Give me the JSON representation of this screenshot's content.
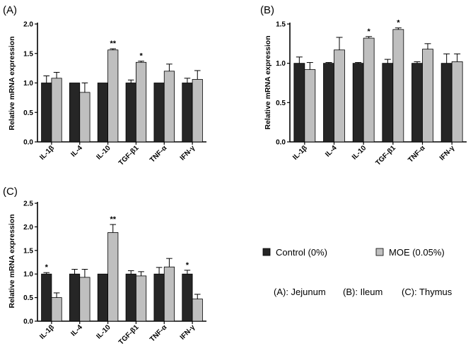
{
  "chart_data": [
    {
      "panel": "(A)",
      "type": "bar",
      "ylabel": "Relative mRNA expression",
      "ylim": [
        0,
        2.0
      ],
      "yticks": [
        "0.0",
        "0.5",
        "1.0",
        "1.5",
        "2.0"
      ],
      "categories": [
        "IL-1β",
        "IL-4",
        "IL-10",
        "TGF-β1",
        "TNF-α",
        "IFN-γ"
      ],
      "series": [
        {
          "name": "Control (0%)",
          "color": "#262626",
          "values": [
            1.0,
            1.0,
            1.0,
            1.0,
            1.0,
            1.0
          ],
          "errors": [
            0.12,
            0.0,
            0.0,
            0.05,
            0.0,
            0.08
          ]
        },
        {
          "name": "MOE (0.05%)",
          "color": "#bfbfbf",
          "values": [
            1.08,
            0.84,
            1.56,
            1.35,
            1.2,
            1.06
          ],
          "errors": [
            0.1,
            0.16,
            0.02,
            0.02,
            0.12,
            0.15
          ]
        }
      ],
      "annotations": [
        "",
        "",
        "**",
        "*",
        "",
        ""
      ]
    },
    {
      "panel": "(B)",
      "type": "bar",
      "ylabel": "Relative mRNA expression",
      "ylim": [
        0,
        1.5
      ],
      "yticks": [
        "0.0",
        "0.5",
        "1.0",
        "1.5"
      ],
      "categories": [
        "IL-1β",
        "IL-4",
        "IL-10",
        "TGF-β1",
        "TNF-α",
        "IFN-γ"
      ],
      "series": [
        {
          "name": "Control (0%)",
          "color": "#262626",
          "values": [
            1.0,
            1.0,
            1.0,
            1.0,
            1.0,
            1.0
          ],
          "errors": [
            0.08,
            0.01,
            0.01,
            0.05,
            0.02,
            0.12
          ]
        },
        {
          "name": "MOE (0.05%)",
          "color": "#bfbfbf",
          "values": [
            0.92,
            1.17,
            1.32,
            1.43,
            1.18,
            1.02
          ],
          "errors": [
            0.09,
            0.16,
            0.02,
            0.02,
            0.07,
            0.1
          ]
        }
      ],
      "annotations": [
        "",
        "",
        "*",
        "*",
        "",
        ""
      ]
    },
    {
      "panel": "(C)",
      "type": "bar",
      "ylabel": "Relative mRNA expression",
      "ylim": [
        0,
        2.5
      ],
      "yticks": [
        "0.0",
        "0.5",
        "1.0",
        "1.5",
        "2.0",
        "2.5"
      ],
      "categories": [
        "IL-1β",
        "IL-4",
        "IL-10",
        "TGF-β1",
        "TNF-α",
        "IFN-γ"
      ],
      "series": [
        {
          "name": "Control (0%)",
          "color": "#262626",
          "values": [
            1.0,
            1.0,
            1.0,
            1.0,
            1.0,
            1.0
          ],
          "errors": [
            0.03,
            0.1,
            0.0,
            0.07,
            0.14,
            0.08
          ]
        },
        {
          "name": "MOE (0.05%)",
          "color": "#bfbfbf",
          "values": [
            0.5,
            0.93,
            1.88,
            0.96,
            1.15,
            0.47
          ],
          "errors": [
            0.1,
            0.17,
            0.17,
            0.09,
            0.18,
            0.1
          ]
        }
      ],
      "annotations": [
        "*",
        "",
        "**",
        "",
        "",
        "*"
      ]
    }
  ],
  "legend": {
    "control_label": "Control (0%)",
    "moe_label": "MOE (0.05%)",
    "control_color": "#262626",
    "moe_color": "#bfbfbf"
  },
  "tissue_note": {
    "a": "(A): Jejunum",
    "b": "(B): Ileum",
    "c": "(C): Thymus"
  }
}
